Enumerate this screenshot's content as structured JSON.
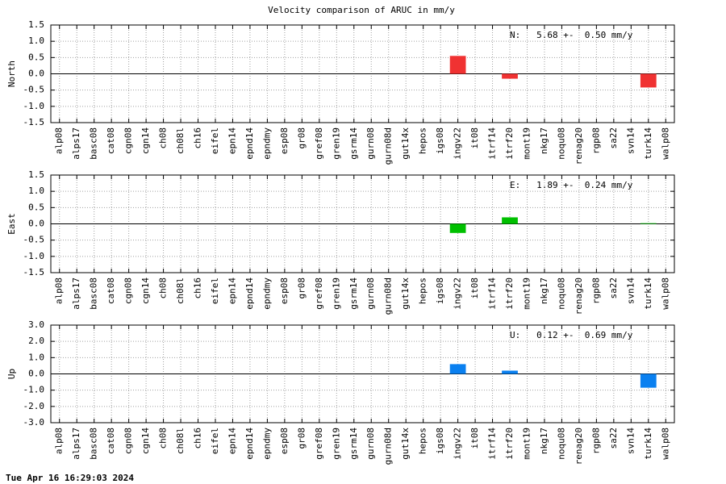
{
  "title": "Velocity comparison of ARUC in mm/y",
  "timestamp": "Tue Apr 16 16:29:03 2024",
  "chart_data": [
    {
      "type": "bar",
      "ylabel": "North",
      "annotation": "N:   5.68 +-  0.50 mm/y",
      "color": "#f03232",
      "grid": true,
      "categories": [
        "alp08",
        "alps17",
        "basc08",
        "cat08",
        "cgn08",
        "cgn14",
        "ch08",
        "ch08l",
        "ch16",
        "eifel",
        "epn14",
        "epnd14",
        "epndmy",
        "esp08",
        "gr08",
        "gref08",
        "gren19",
        "gsrm14",
        "gurn08",
        "gurn08d",
        "gut14x",
        "hepos",
        "igs08",
        "ingv22",
        "it08",
        "itrf14",
        "itrf20",
        "mont19",
        "nkg17",
        "noqu08",
        "renag20",
        "rgp08",
        "sa22",
        "svn14",
        "turk14",
        "walp08"
      ],
      "values": [
        null,
        null,
        null,
        null,
        null,
        null,
        null,
        null,
        null,
        null,
        null,
        null,
        null,
        null,
        null,
        null,
        null,
        null,
        null,
        null,
        null,
        null,
        null,
        0.55,
        null,
        null,
        -0.15,
        null,
        null,
        null,
        null,
        null,
        null,
        null,
        -0.42,
        null
      ],
      "ylim": [
        -1.5,
        1.5
      ],
      "yticks": [
        -1.5,
        {
          "value": -1,
          "label": "-1.0"
        },
        -0.5,
        {
          "value": 0,
          "label": "0.0"
        },
        0.5,
        {
          "value": 1,
          "label": "1.0"
        },
        1.5
      ]
    },
    {
      "type": "bar",
      "ylabel": "East",
      "annotation": "E:   1.89 +-  0.24 mm/y",
      "color": "#00c000",
      "grid": true,
      "categories": [
        "alp08",
        "alps17",
        "basc08",
        "cat08",
        "cgn08",
        "cgn14",
        "ch08",
        "ch08l",
        "ch16",
        "eifel",
        "epn14",
        "epnd14",
        "epndmy",
        "esp08",
        "gr08",
        "gref08",
        "gren19",
        "gsrm14",
        "gurn08",
        "gurn08d",
        "gut14x",
        "hepos",
        "igs08",
        "ingv22",
        "it08",
        "itrf14",
        "itrf20",
        "mont19",
        "nkg17",
        "noqu08",
        "renag20",
        "rgp08",
        "sa22",
        "svn14",
        "turk14",
        "walp08"
      ],
      "values": [
        null,
        null,
        null,
        null,
        null,
        null,
        null,
        null,
        null,
        null,
        null,
        null,
        null,
        null,
        null,
        null,
        null,
        null,
        null,
        null,
        null,
        null,
        null,
        -0.28,
        null,
        null,
        0.2,
        null,
        null,
        null,
        null,
        null,
        null,
        null,
        0.02,
        null
      ],
      "ylim": [
        -1.5,
        1.5
      ],
      "yticks": [
        -1.5,
        {
          "value": -1,
          "label": "-1.0"
        },
        -0.5,
        {
          "value": 0,
          "label": "0.0"
        },
        0.5,
        {
          "value": 1,
          "label": "1.0"
        },
        1.5
      ]
    },
    {
      "type": "bar",
      "ylabel": "Up",
      "annotation": "U:   0.12 +-  0.69 mm/y",
      "color": "#0a80f0",
      "grid": true,
      "categories": [
        "alp08",
        "alps17",
        "basc08",
        "cat08",
        "cgn08",
        "cgn14",
        "ch08",
        "ch08l",
        "ch16",
        "eifel",
        "epn14",
        "epnd14",
        "epndmy",
        "esp08",
        "gr08",
        "gref08",
        "gren19",
        "gsrm14",
        "gurn08",
        "gurn08d",
        "gut14x",
        "hepos",
        "igs08",
        "ingv22",
        "it08",
        "itrf14",
        "itrf20",
        "mont19",
        "nkg17",
        "noqu08",
        "renag20",
        "rgp08",
        "sa22",
        "svn14",
        "turk14",
        "walp08"
      ],
      "values": [
        null,
        null,
        null,
        null,
        null,
        null,
        null,
        null,
        null,
        null,
        null,
        null,
        null,
        null,
        null,
        null,
        null,
        null,
        null,
        null,
        null,
        null,
        null,
        0.6,
        null,
        null,
        0.2,
        null,
        null,
        null,
        null,
        null,
        null,
        null,
        -0.85,
        null
      ],
      "ylim": [
        -3,
        3
      ],
      "yticks": [
        {
          "value": -3,
          "label": "-3.0"
        },
        {
          "value": -2,
          "label": "-2.0"
        },
        {
          "value": -1,
          "label": "-1.0"
        },
        {
          "value": 0,
          "label": "0.0"
        },
        {
          "value": 1,
          "label": "1.0"
        },
        {
          "value": 2,
          "label": "2.0"
        },
        {
          "value": 3,
          "label": "3.0"
        }
      ]
    }
  ]
}
